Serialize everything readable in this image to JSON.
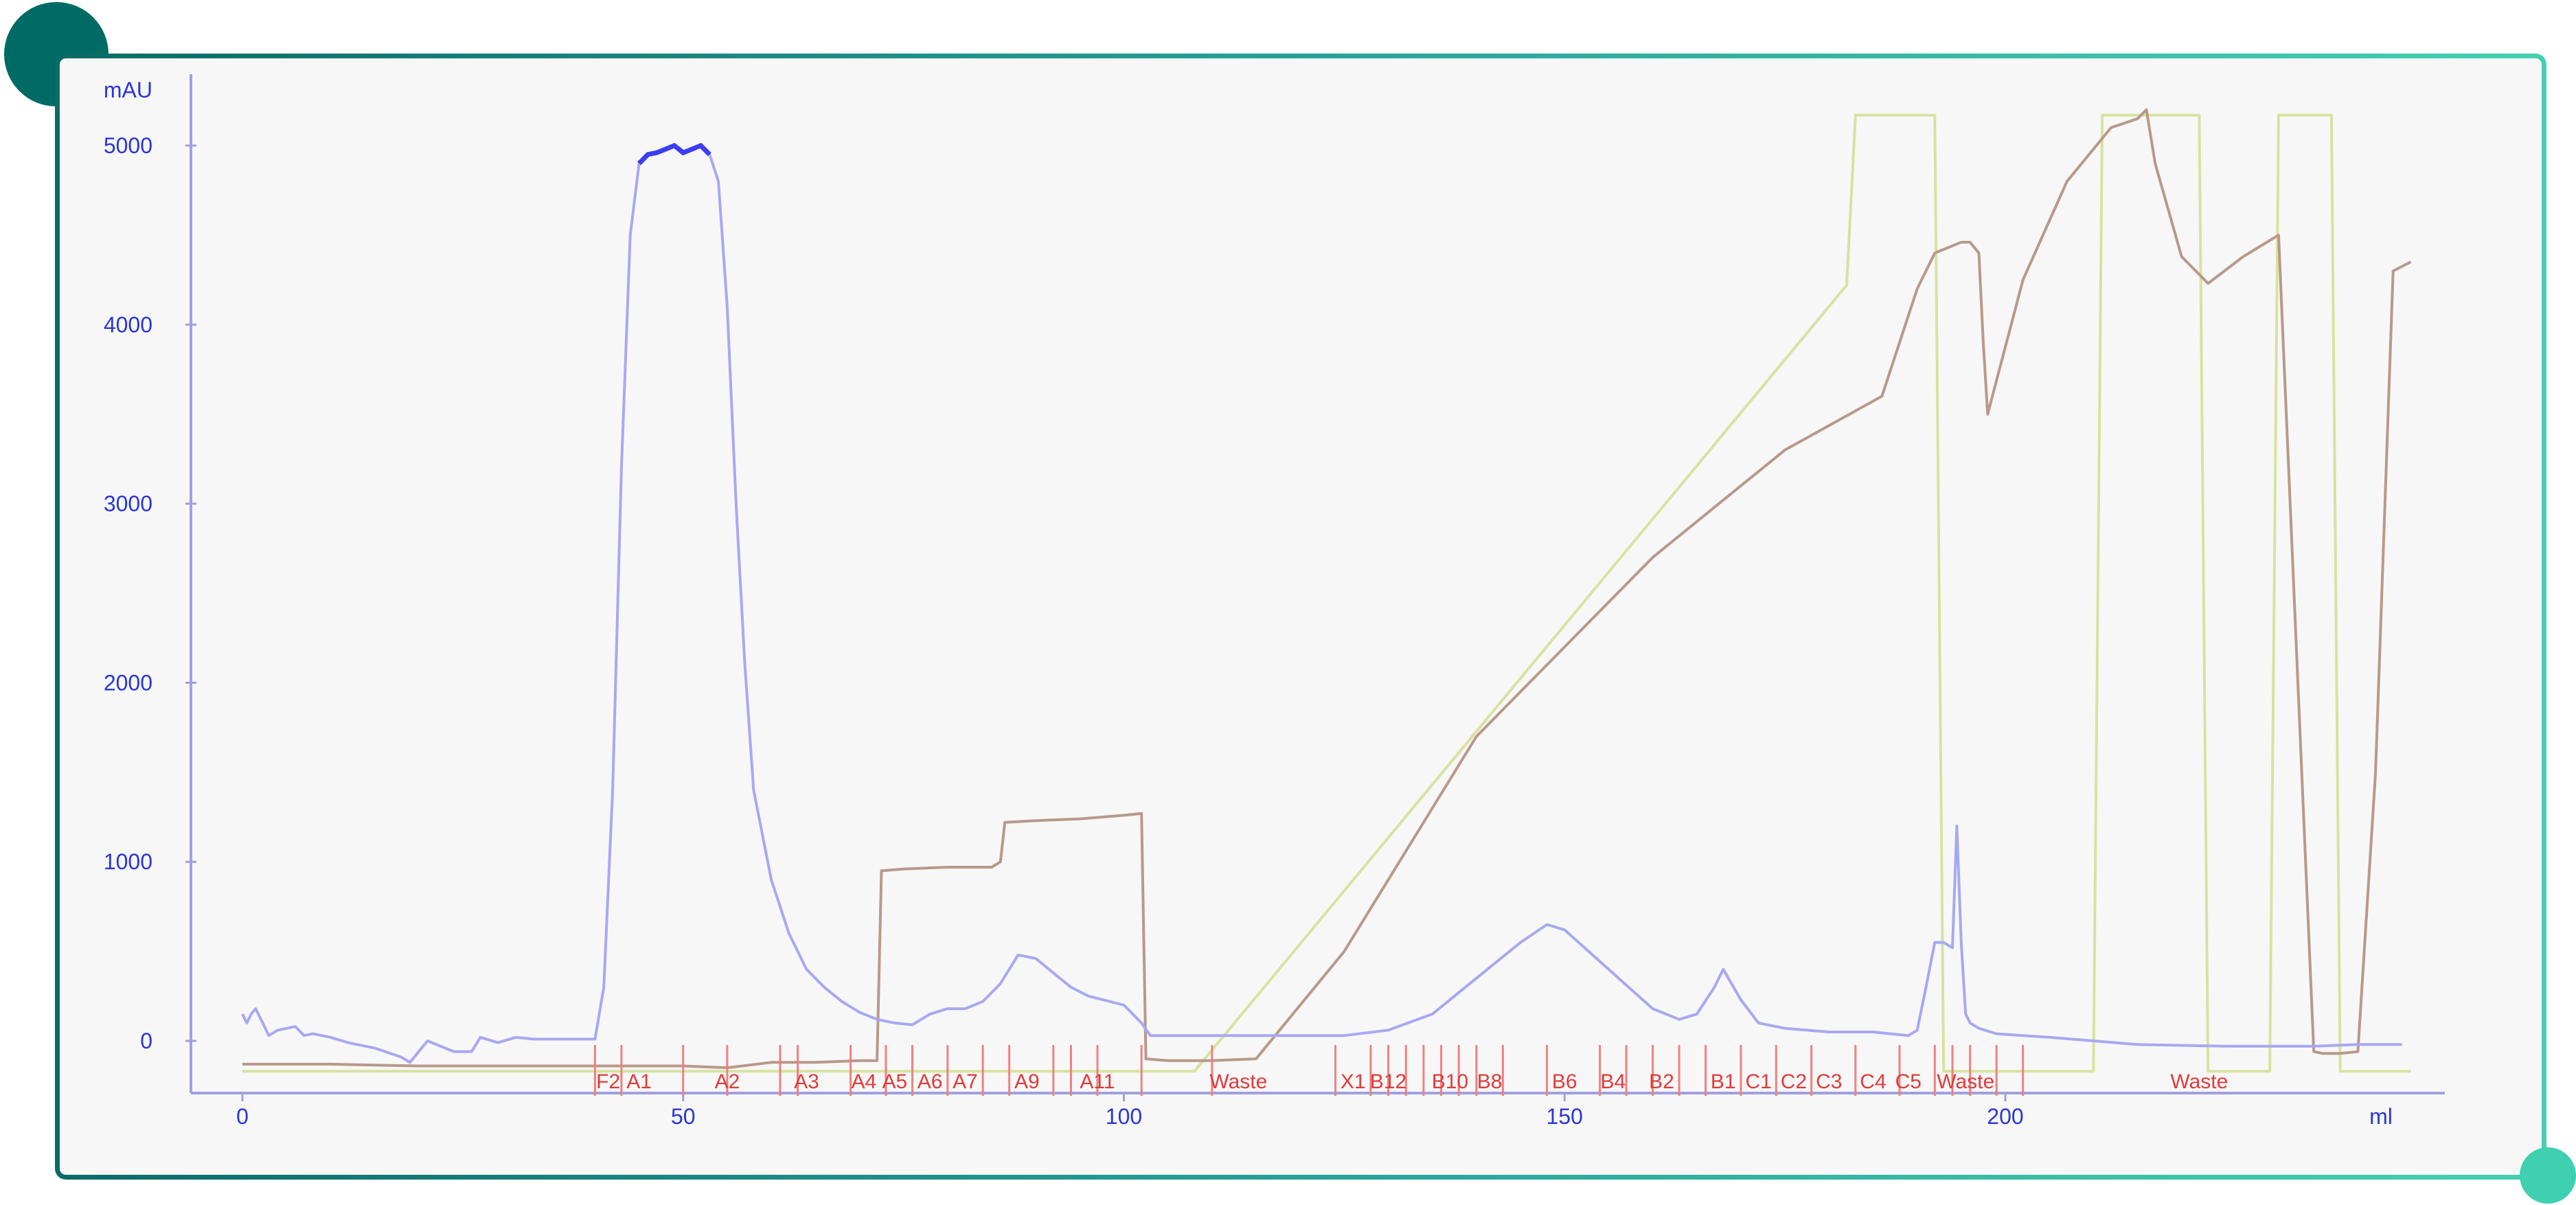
{
  "colors": {
    "frame_border": "#1e8e86",
    "accent_dark": "#006a65",
    "accent_light": "#3ed0b0",
    "uv": "#3a3df0",
    "uv_light": "#a8a8f2",
    "conductivity": "#b8998a",
    "gradient": "#d8e2a0",
    "fraction_mark": "#f08080",
    "axis_text": "#2a36d6",
    "fraction_text": "#e23a3a"
  },
  "chart_data": {
    "type": "line",
    "ylabel": "mAU",
    "xlabel": "ml",
    "xlim": [
      -2,
      246
    ],
    "ylim": [
      -300,
      5250
    ],
    "x_ticks": [
      0,
      50,
      100,
      150,
      200
    ],
    "y_ticks": [
      0,
      1000,
      2000,
      3000,
      4000,
      5000
    ],
    "x_tick_labels": [
      "0",
      "50",
      "100",
      "150",
      "200"
    ],
    "y_tick_labels": [
      "0",
      "1000",
      "2000",
      "3000",
      "4000",
      "5000"
    ],
    "grid": false,
    "series": [
      {
        "id": "uv",
        "x": [
          0,
          0.5,
          1,
          1.5,
          3,
          4,
          6,
          7,
          8,
          10,
          12,
          15,
          18,
          19,
          20,
          21,
          24,
          26,
          27,
          29,
          31,
          33,
          38,
          40,
          41,
          42,
          43,
          44,
          45,
          46,
          47,
          48,
          49,
          50,
          51,
          52,
          53,
          54,
          55,
          56,
          57,
          58,
          60,
          62,
          64,
          66,
          68,
          70,
          72,
          74,
          76,
          78,
          80,
          82,
          84,
          86,
          88,
          90,
          92,
          94,
          96,
          100,
          102,
          103,
          110,
          120,
          125,
          130,
          135,
          140,
          145,
          148,
          150,
          155,
          160,
          163,
          165,
          167,
          168,
          170,
          172,
          175,
          180,
          185,
          189,
          190,
          191,
          192,
          193,
          194,
          194.5,
          195,
          195.5,
          196,
          197,
          199,
          202,
          205,
          210,
          215,
          225,
          235,
          240,
          245
        ],
        "y": [
          150,
          100,
          150,
          180,
          30,
          60,
          80,
          30,
          40,
          20,
          -10,
          -40,
          -90,
          -120,
          -60,
          0,
          -60,
          -60,
          20,
          -10,
          20,
          10,
          10,
          10,
          300,
          1400,
          3200,
          4500,
          4900,
          4950,
          4960,
          4980,
          5000,
          4960,
          4980,
          5000,
          4950,
          4800,
          4100,
          3000,
          2100,
          1400,
          900,
          600,
          400,
          300,
          220,
          160,
          120,
          100,
          90,
          150,
          180,
          180,
          220,
          320,
          480,
          460,
          380,
          300,
          250,
          200,
          100,
          30,
          30,
          30,
          30,
          60,
          150,
          350,
          550,
          650,
          620,
          400,
          180,
          120,
          150,
          300,
          400,
          230,
          100,
          70,
          50,
          50,
          30,
          60,
          300,
          550,
          550,
          520,
          1200,
          550,
          150,
          100,
          70,
          40,
          30,
          20,
          0,
          -20,
          -30,
          -30,
          -20,
          -20
        ]
      },
      {
        "id": "conductivity",
        "x": [
          0,
          10,
          20,
          30,
          40,
          50,
          55,
          60,
          65,
          70,
          72,
          72.5,
          75,
          80,
          85,
          86,
          86.5,
          90,
          95,
          100,
          102,
          102.5,
          105,
          110,
          115,
          125,
          140,
          160,
          175,
          186,
          190,
          192,
          195,
          196,
          197,
          197.5,
          198,
          202,
          207,
          212,
          215,
          216,
          217,
          220,
          223,
          227,
          231,
          235,
          236,
          238,
          240,
          242,
          244,
          246
        ],
        "y": [
          -130,
          -130,
          -140,
          -140,
          -140,
          -140,
          -150,
          -120,
          -120,
          -110,
          -110,
          950,
          960,
          970,
          970,
          1000,
          1220,
          1230,
          1240,
          1260,
          1270,
          -100,
          -110,
          -110,
          -100,
          500,
          1700,
          2700,
          3300,
          3600,
          4200,
          4400,
          4460,
          4460,
          4400,
          3900,
          3500,
          4250,
          4800,
          5100,
          5150,
          5200,
          4900,
          4380,
          4230,
          4380,
          4500,
          -60,
          -70,
          -70,
          -60,
          1500,
          4300,
          4350
        ]
      },
      {
        "id": "gradient",
        "x": [
          0,
          105,
          108,
          182,
          183,
          192,
          193,
          210,
          211,
          222,
          223,
          230,
          231,
          237,
          238,
          246
        ],
        "y": [
          -170,
          -170,
          -170,
          4220,
          5170,
          5170,
          -170,
          -170,
          5170,
          5170,
          -170,
          -170,
          5170,
          5170,
          -170,
          -170
        ]
      }
    ],
    "fractions": [
      {
        "label": "F2",
        "start": 40,
        "end": 43
      },
      {
        "label": "A1",
        "start": 43,
        "end": 50
      },
      {
        "label": "A2",
        "start": 50,
        "end": 61
      },
      {
        "label": "A3",
        "start": 61,
        "end": 69
      },
      {
        "label": "A4",
        "start": 69,
        "end": 73
      },
      {
        "label": "A5",
        "start": 73,
        "end": 76
      },
      {
        "label": "A6",
        "start": 76,
        "end": 80
      },
      {
        "label": "A7",
        "start": 80,
        "end": 84
      },
      {
        "label": "A9",
        "start": 84,
        "end": 92
      },
      {
        "label": "A11",
        "start": 92,
        "end": 102
      },
      {
        "label": "Waste",
        "start": 102,
        "end": 124
      },
      {
        "label": "X1",
        "start": 124,
        "end": 128
      },
      {
        "label": "B12",
        "start": 128,
        "end": 132
      },
      {
        "label": "B10",
        "start": 132,
        "end": 140
      },
      {
        "label": "B8",
        "start": 140,
        "end": 143
      },
      {
        "label": "B6",
        "start": 143,
        "end": 154
      },
      {
        "label": "B4",
        "start": 154,
        "end": 157
      },
      {
        "label": "B2",
        "start": 157,
        "end": 166
      },
      {
        "label": "B1",
        "start": 166,
        "end": 170
      },
      {
        "label": "C1",
        "start": 170,
        "end": 174
      },
      {
        "label": "C2",
        "start": 174,
        "end": 178
      },
      {
        "label": "C3",
        "start": 178,
        "end": 183
      },
      {
        "label": "C4",
        "start": 183,
        "end": 188
      },
      {
        "label": "C5",
        "start": 188,
        "end": 192
      },
      {
        "label": "Waste",
        "start": 192,
        "end": 202
      },
      {
        "label": "Waste",
        "start": 202,
        "end": 246
      }
    ],
    "fraction_label_positions": [
      41.5,
      45,
      55,
      64,
      70.5,
      74,
      78,
      82,
      89,
      97,
      113,
      126,
      130,
      137,
      141.5,
      150,
      155.5,
      161,
      168,
      172,
      176,
      180,
      185,
      189,
      195.5,
      222
    ],
    "fraction_ticks": [
      40,
      43,
      50,
      55,
      61,
      63,
      69,
      73,
      76,
      80,
      84,
      87,
      92,
      94,
      97,
      102,
      110,
      124,
      128,
      130,
      132,
      134,
      136,
      138,
      140,
      143,
      148,
      154,
      157,
      160,
      163,
      166,
      170,
      174,
      178,
      183,
      188,
      192,
      194,
      196,
      199,
      202
    ]
  }
}
